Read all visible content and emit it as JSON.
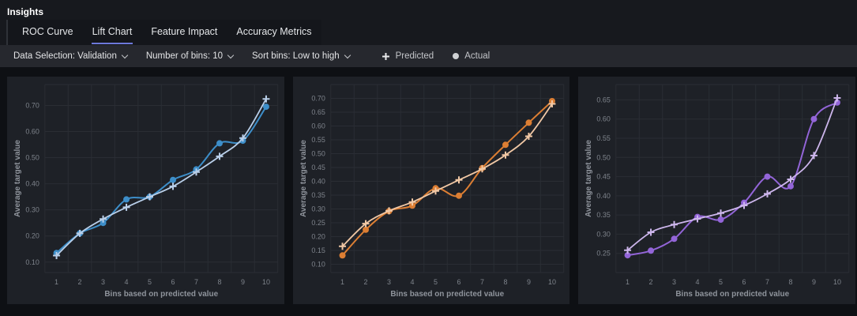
{
  "header": {
    "title": "Insights"
  },
  "tabs": [
    {
      "label": "ROC Curve",
      "active": false
    },
    {
      "label": "Lift Chart",
      "active": true
    },
    {
      "label": "Feature Impact",
      "active": false
    },
    {
      "label": "Accuracy Metrics",
      "active": false
    }
  ],
  "toolbar": {
    "controls": [
      {
        "label": "Data Selection: Validation"
      },
      {
        "label": "Number of bins: 10"
      },
      {
        "label": "Sort bins: Low to high"
      }
    ],
    "legend": [
      {
        "label": "Predicted",
        "marker": "plus"
      },
      {
        "label": "Actual",
        "marker": "circle"
      }
    ]
  },
  "colors": {
    "accent_underline": "#6d79da",
    "panel_bg": "#1e2127",
    "toolbar_bg": "#26282e",
    "grid": "#2a2d34",
    "tick_text": "#7e838b",
    "axis_title_text": "#8f949c"
  },
  "chart_data": [
    {
      "type": "line",
      "x": [
        1,
        2,
        3,
        4,
        5,
        6,
        7,
        8,
        9,
        10
      ],
      "xlabel": "Bins based on predicted value",
      "ylabel": "Average target value",
      "ylim": [
        0.06,
        0.78
      ],
      "yticks": [
        0.1,
        0.2,
        0.3,
        0.4,
        0.5,
        0.6,
        0.7
      ],
      "grid": true,
      "legend_position": "shared-toolbar",
      "series": [
        {
          "name": "Predicted",
          "marker": "plus",
          "color": "#b9cfe9",
          "values": [
            0.125,
            0.21,
            0.265,
            0.31,
            0.35,
            0.39,
            0.445,
            0.505,
            0.575,
            0.725
          ]
        },
        {
          "name": "Actual",
          "marker": "circle",
          "color": "#3d8ec9",
          "values": [
            0.135,
            0.21,
            0.25,
            0.34,
            0.35,
            0.415,
            0.455,
            0.555,
            0.565,
            0.695
          ]
        }
      ]
    },
    {
      "type": "line",
      "x": [
        1,
        2,
        3,
        4,
        5,
        6,
        7,
        8,
        9,
        10
      ],
      "xlabel": "Bins based on predicted value",
      "ylabel": "Average target value",
      "ylim": [
        0.07,
        0.75
      ],
      "yticks": [
        0.1,
        0.15,
        0.2,
        0.25,
        0.3,
        0.35,
        0.4,
        0.45,
        0.5,
        0.55,
        0.6,
        0.65,
        0.7
      ],
      "grid": true,
      "legend_position": "shared-toolbar",
      "series": [
        {
          "name": "Predicted",
          "marker": "plus",
          "color": "#f1c8a5",
          "values": [
            0.165,
            0.247,
            0.293,
            0.325,
            0.365,
            0.405,
            0.445,
            0.495,
            0.563,
            0.68
          ]
        },
        {
          "name": "Actual",
          "marker": "circle",
          "color": "#dc7e33",
          "values": [
            0.132,
            0.225,
            0.292,
            0.312,
            0.375,
            0.348,
            0.448,
            0.532,
            0.612,
            0.69
          ]
        }
      ]
    },
    {
      "type": "line",
      "x": [
        1,
        2,
        3,
        4,
        5,
        6,
        7,
        8,
        9,
        10
      ],
      "xlabel": "Bins based on predicted value",
      "ylabel": "Average target value",
      "ylim": [
        0.2,
        0.69
      ],
      "yticks": [
        0.25,
        0.3,
        0.35,
        0.4,
        0.45,
        0.5,
        0.55,
        0.6,
        0.65
      ],
      "grid": true,
      "legend_position": "shared-toolbar",
      "series": [
        {
          "name": "Predicted",
          "marker": "plus",
          "color": "#cdb6ec",
          "values": [
            0.258,
            0.305,
            0.325,
            0.34,
            0.355,
            0.375,
            0.405,
            0.443,
            0.505,
            0.655
          ]
        },
        {
          "name": "Actual",
          "marker": "circle",
          "color": "#9365d8",
          "values": [
            0.245,
            0.257,
            0.288,
            0.345,
            0.338,
            0.382,
            0.45,
            0.425,
            0.6,
            0.643
          ]
        }
      ]
    }
  ]
}
